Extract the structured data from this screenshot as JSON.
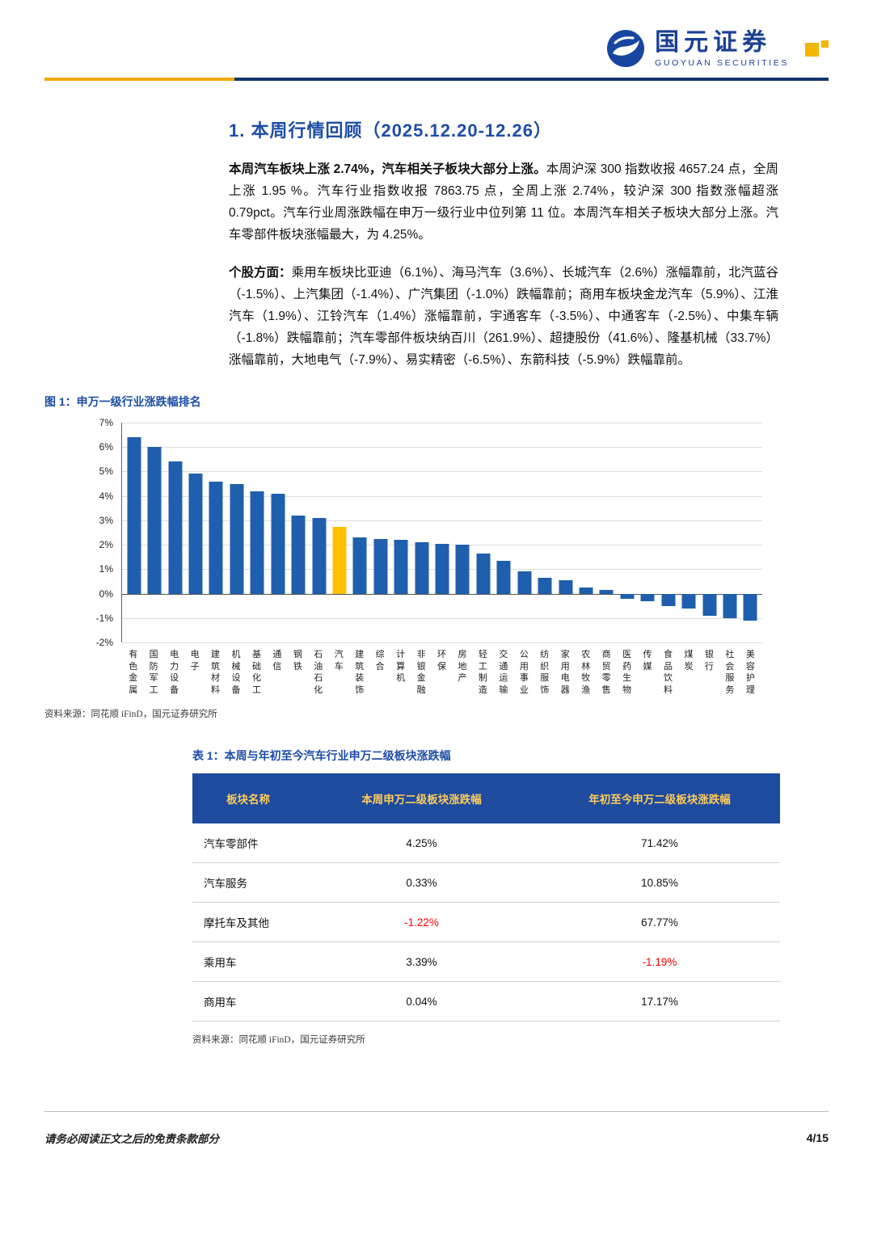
{
  "header": {
    "brand_cn": "国元证券",
    "brand_en": "GUOYUAN SECURITIES"
  },
  "section": {
    "title": "1. 本周行情回顾（2025.12.20-12.26）"
  },
  "paragraphs": {
    "p1_bold": "本周汽车板块上涨 2.74%，汽车相关子板块大部分上涨。",
    "p1_rest": "本周沪深 300 指数收报 4657.24 点，全周上涨 1.95 %。汽车行业指数收报 7863.75 点，全周上涨 2.74%，较沪深 300 指数涨幅超涨 0.79pct。汽车行业周涨跌幅在申万一级行业中位列第 11 位。本周汽车相关子板块大部分上涨。汽车零部件板块涨幅最大，为 4.25%。",
    "p2_bold": "个股方面：",
    "p2_rest": "乘用车板块比亚迪（6.1%）、海马汽车（3.6%）、长城汽车（2.6%）涨幅靠前，北汽蓝谷（-1.5%）、上汽集团（-1.4%）、广汽集团（-1.0%）跌幅靠前；商用车板块金龙汽车（5.9%）、江淮汽车（1.9%）、江铃汽车（1.4%）涨幅靠前，宇通客车（-3.5%）、中通客车（-2.5%）、中集车辆（-1.8%）跌幅靠前；汽车零部件板块纳百川（261.9%）、超捷股份（41.6%）、隆基机械（33.7%）涨幅靠前，大地电气（-7.9%）、易实精密（-6.5%）、东箭科技（-5.9%）跌幅靠前。"
  },
  "figure": {
    "title": "图 1：申万一级行业涨跌幅排名",
    "source": "资料来源：同花顺 iFinD，国元证券研究所"
  },
  "chart_data": {
    "type": "bar",
    "title": "申万一级行业涨跌幅排名",
    "xlabel": "",
    "ylabel": "",
    "ylim": [
      -2,
      7
    ],
    "ytick_step": 1,
    "grid": true,
    "legend": "none",
    "bar_color": "#1F5FAD",
    "highlight_color": "#FFC000",
    "highlight_category": "汽车",
    "categories": [
      "有色金属",
      "国防军工",
      "电力设备",
      "电子",
      "建筑材料",
      "机械设备",
      "基础化工",
      "通信",
      "钢铁",
      "石油石化",
      "汽车",
      "建筑装饰",
      "综合",
      "计算机",
      "非银金融",
      "环保",
      "房地产",
      "轻工制造",
      "交通运输",
      "公用事业",
      "纺织服饰",
      "家用电器",
      "农林牧渔",
      "商贸零售",
      "医药生物",
      "传媒",
      "食品饮料",
      "煤炭",
      "银行",
      "社会服务",
      "美容护理"
    ],
    "values": [
      6.4,
      6.0,
      5.4,
      4.9,
      4.6,
      4.5,
      4.2,
      4.1,
      3.2,
      3.1,
      2.74,
      2.3,
      2.25,
      2.2,
      2.1,
      2.05,
      2.0,
      1.65,
      1.35,
      0.9,
      0.65,
      0.55,
      0.25,
      0.15,
      -0.2,
      -0.3,
      -0.5,
      -0.6,
      -0.9,
      -1.0,
      -1.1
    ]
  },
  "table": {
    "title": "表 1：本周与年初至今汽车行业申万二级板块涨跌幅",
    "headers": [
      "板块名称",
      "本周申万二级板块涨跌幅",
      "年初至今申万二级板块涨跌幅"
    ],
    "rows": [
      [
        "汽车零部件",
        "4.25%",
        "71.42%"
      ],
      [
        "汽车服务",
        "0.33%",
        "10.85%"
      ],
      [
        "摩托车及其他",
        "-1.22%",
        "67.77%"
      ],
      [
        "乘用车",
        "3.39%",
        "-1.19%"
      ],
      [
        "商用车",
        "0.04%",
        "17.17%"
      ]
    ],
    "source": "资料来源：同花顺 iFinD，国元证券研究所"
  },
  "footer": {
    "disclaimer": "请务必阅读正文之后的免责条款部分",
    "page": "4/15"
  },
  "colors": {
    "accent_blue": "#1E4DA6",
    "brand_blue": "#1A3F94",
    "bar_blue": "#1F5FAD",
    "bar_highlight": "#FFC000",
    "table_header_bg": "#1E4B9E",
    "table_header_text": "#FBCB5B",
    "negative_red": "#FF0000",
    "rule_yellow": "#F2A900",
    "rule_navy": "#12356F"
  }
}
